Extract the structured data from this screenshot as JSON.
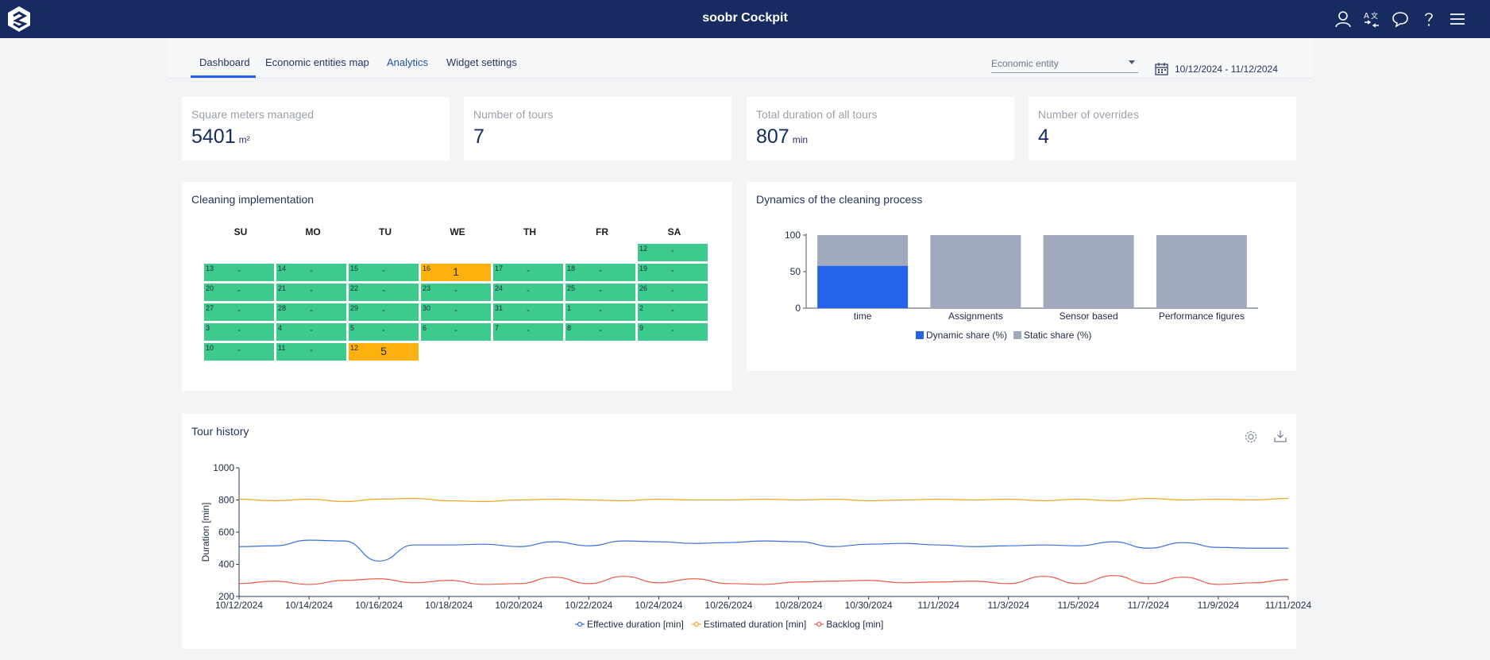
{
  "header": {
    "title": "soobr Cockpit",
    "icons": [
      "user-icon",
      "translate-icon",
      "chat-icon",
      "help-icon",
      "menu-icon"
    ]
  },
  "tabs": [
    {
      "label": "Dashboard",
      "active": true
    },
    {
      "label": "Economic entities map",
      "active": false
    },
    {
      "label": "Analytics",
      "active": false
    },
    {
      "label": "Widget settings",
      "active": false
    }
  ],
  "filters": {
    "entity_placeholder": "Economic entity",
    "date_range": "10/12/2024 - 11/12/2024"
  },
  "kpis": [
    {
      "title": "Square meters managed",
      "value": "5401",
      "unit": "m²"
    },
    {
      "title": "Number of tours",
      "value": "7",
      "unit": ""
    },
    {
      "title": "Total duration of all tours",
      "value": "807",
      "unit": "min"
    },
    {
      "title": "Number of overrides",
      "value": "4",
      "unit": ""
    }
  ],
  "calendar": {
    "title": "Cleaning implementation",
    "weekdays": [
      "SU",
      "MO",
      "TU",
      "WE",
      "TH",
      "FR",
      "SA"
    ],
    "weeks": [
      [
        null,
        null,
        null,
        null,
        null,
        null,
        {
          "day": "12",
          "value": "-",
          "status": "ok"
        }
      ],
      [
        {
          "day": "13",
          "value": "-",
          "status": "ok"
        },
        {
          "day": "14",
          "value": "-",
          "status": "ok"
        },
        {
          "day": "15",
          "value": "-",
          "status": "ok"
        },
        {
          "day": "16",
          "value": "1",
          "status": "warn"
        },
        {
          "day": "17",
          "value": "-",
          "status": "ok"
        },
        {
          "day": "18",
          "value": "-",
          "status": "ok"
        },
        {
          "day": "19",
          "value": "-",
          "status": "ok"
        }
      ],
      [
        {
          "day": "20",
          "value": "-",
          "status": "ok"
        },
        {
          "day": "21",
          "value": "-",
          "status": "ok"
        },
        {
          "day": "22",
          "value": "-",
          "status": "ok"
        },
        {
          "day": "23",
          "value": "-",
          "status": "ok"
        },
        {
          "day": "24",
          "value": "-",
          "status": "ok"
        },
        {
          "day": "25",
          "value": "-",
          "status": "ok"
        },
        {
          "day": "26",
          "value": "-",
          "status": "ok"
        }
      ],
      [
        {
          "day": "27",
          "value": "-",
          "status": "ok"
        },
        {
          "day": "28",
          "value": "-",
          "status": "ok"
        },
        {
          "day": "29",
          "value": "-",
          "status": "ok"
        },
        {
          "day": "30",
          "value": "-",
          "status": "ok"
        },
        {
          "day": "31",
          "value": "-",
          "status": "ok"
        },
        {
          "day": "1",
          "value": "-",
          "status": "ok"
        },
        {
          "day": "2",
          "value": "-",
          "status": "ok"
        }
      ],
      [
        {
          "day": "3",
          "value": "-",
          "status": "ok"
        },
        {
          "day": "4",
          "value": "-",
          "status": "ok"
        },
        {
          "day": "5",
          "value": "-",
          "status": "ok"
        },
        {
          "day": "6",
          "value": "-",
          "status": "ok"
        },
        {
          "day": "7",
          "value": "-",
          "status": "ok"
        },
        {
          "day": "8",
          "value": "-",
          "status": "ok"
        },
        {
          "day": "9",
          "value": "-",
          "status": "ok"
        }
      ],
      [
        {
          "day": "10",
          "value": "-",
          "status": "ok"
        },
        {
          "day": "11",
          "value": "-",
          "status": "ok"
        },
        {
          "day": "12",
          "value": "5",
          "status": "warn"
        },
        null,
        null,
        null,
        null
      ]
    ]
  },
  "chart_data": [
    {
      "type": "bar",
      "title": "Dynamics of the cleaning process",
      "stacked": true,
      "categories": [
        "time",
        "Assignments",
        "Sensor based",
        "Performance figures"
      ],
      "series": [
        {
          "name": "Dynamic share (%)",
          "values": [
            58,
            0,
            0,
            0
          ],
          "color": "#2563eb"
        },
        {
          "name": "Static share (%)",
          "values": [
            42,
            100,
            100,
            100
          ],
          "color": "#a1a9bd"
        }
      ],
      "ylim": [
        0,
        100
      ],
      "yticks": [
        0,
        50,
        100
      ],
      "legend": "bottom"
    },
    {
      "type": "line",
      "title": "Tour history",
      "ylabel": "Duration [min]",
      "ylim": [
        200,
        1000
      ],
      "yticks": [
        200,
        400,
        600,
        800,
        1000
      ],
      "x_start": "2024-10-12",
      "x": [
        "10/12/2024",
        "10/13/2024",
        "10/14/2024",
        "10/15/2024",
        "10/16/2024",
        "10/17/2024",
        "10/18/2024",
        "10/19/2024",
        "10/20/2024",
        "10/21/2024",
        "10/22/2024",
        "10/23/2024",
        "10/24/2024",
        "10/25/2024",
        "10/26/2024",
        "10/27/2024",
        "10/28/2024",
        "10/29/2024",
        "10/30/2024",
        "10/31/2024",
        "11/1/2024",
        "11/2/2024",
        "11/3/2024",
        "11/4/2024",
        "11/5/2024",
        "11/6/2024",
        "11/7/2024",
        "11/8/2024",
        "11/9/2024",
        "11/10/2024",
        "11/11/2024"
      ],
      "xticks": [
        "10/12/2024",
        "10/14/2024",
        "10/16/2024",
        "10/18/2024",
        "10/20/2024",
        "10/22/2024",
        "10/24/2024",
        "10/26/2024",
        "10/28/2024",
        "10/30/2024",
        "11/1/2024",
        "11/3/2024",
        "11/5/2024",
        "11/7/2024",
        "11/9/2024",
        "11/11/2024"
      ],
      "series": [
        {
          "name": "Effective duration [min]",
          "color": "#3b6fe0",
          "values": [
            510,
            515,
            550,
            545,
            420,
            520,
            520,
            525,
            510,
            540,
            515,
            545,
            540,
            530,
            535,
            545,
            540,
            510,
            525,
            530,
            520,
            510,
            515,
            520,
            515,
            540,
            500,
            535,
            505,
            500,
            500
          ]
        },
        {
          "name": "Estimated duration [min]",
          "color": "#f5a623",
          "values": [
            805,
            795,
            805,
            790,
            805,
            810,
            795,
            790,
            800,
            805,
            800,
            795,
            805,
            800,
            800,
            805,
            800,
            805,
            795,
            800,
            805,
            800,
            805,
            795,
            805,
            795,
            810,
            800,
            805,
            800,
            810
          ]
        },
        {
          "name": "Backlog [min]",
          "color": "#ef5a4a",
          "values": [
            280,
            295,
            275,
            300,
            310,
            285,
            300,
            275,
            280,
            320,
            280,
            325,
            285,
            310,
            280,
            275,
            290,
            295,
            300,
            285,
            290,
            295,
            280,
            325,
            280,
            330,
            280,
            320,
            275,
            285,
            305
          ]
        }
      ],
      "legend": "bottom"
    }
  ]
}
